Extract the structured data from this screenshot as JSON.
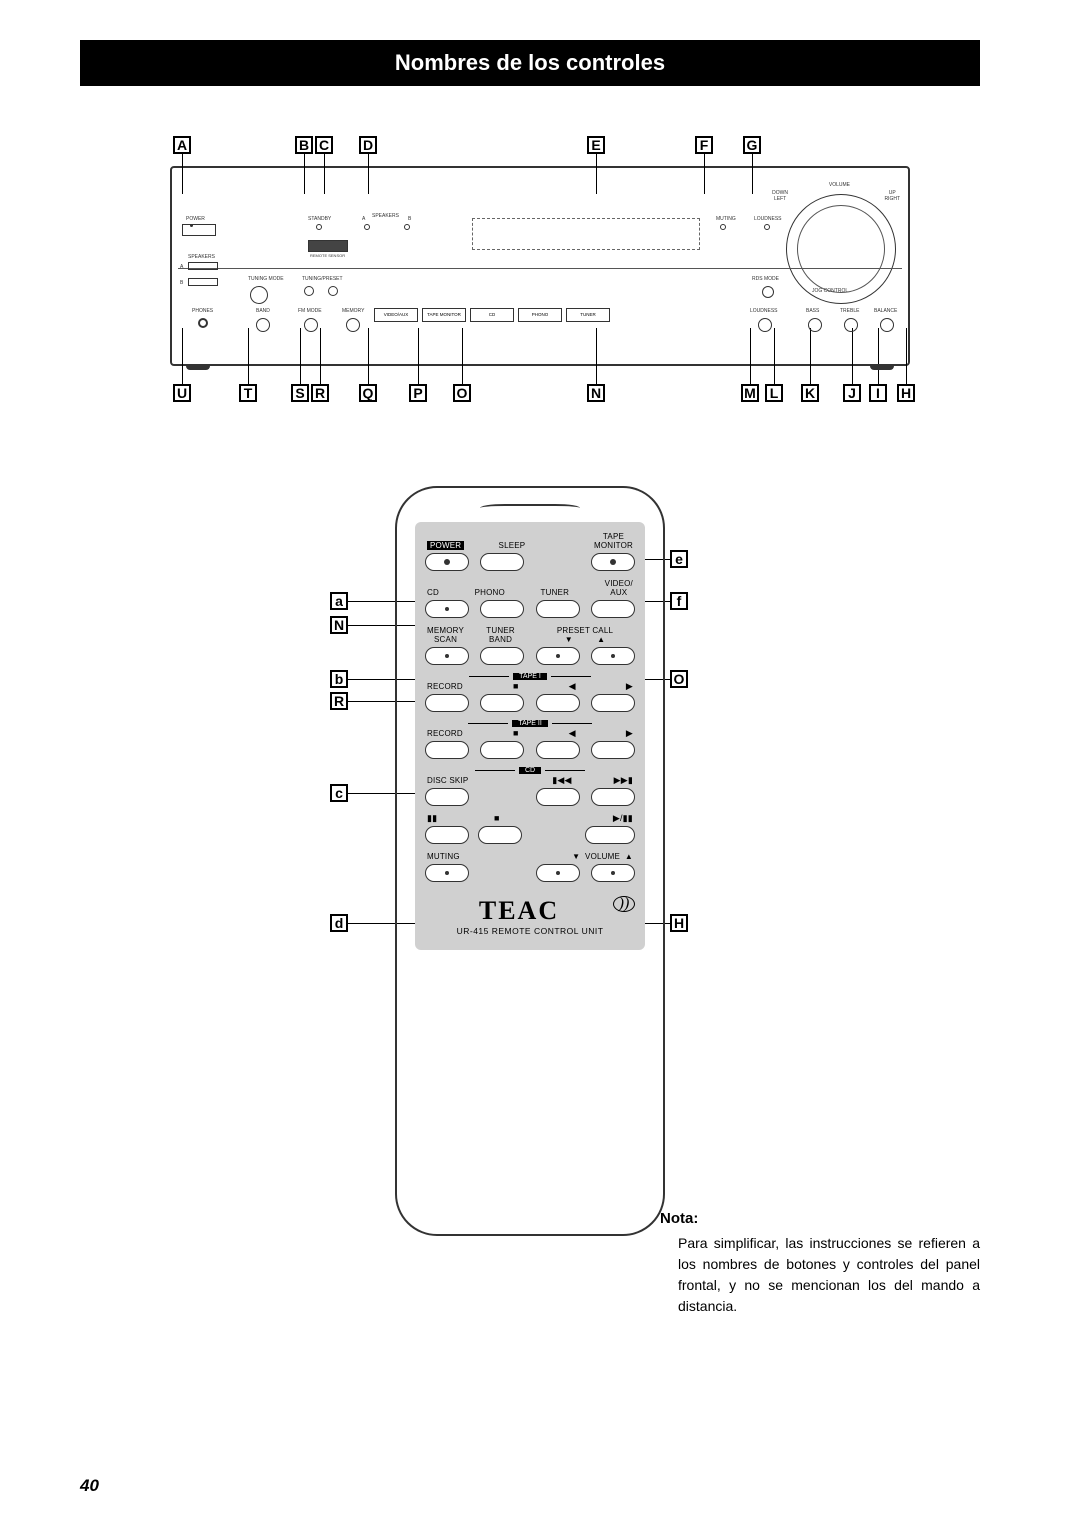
{
  "title_bar": "Nombres de los controles",
  "page_number": "40",
  "panel": {
    "top_labels": [
      "A",
      "B",
      "C",
      "D",
      "E",
      "F",
      "G"
    ],
    "top_x": [
      10,
      132,
      152,
      196,
      424,
      532,
      580
    ],
    "bottom_labels": [
      "U",
      "T",
      "S",
      "R",
      "Q",
      "P",
      "O",
      "N",
      "M",
      "L",
      "K",
      "J",
      "I",
      "H"
    ],
    "bottom_x": [
      10,
      76,
      128,
      148,
      196,
      246,
      290,
      424,
      578,
      602,
      638,
      680,
      706,
      734
    ],
    "power_label": "POWER",
    "standby_label": "STANDBY",
    "speakers_a": "A",
    "speakers_b": "B",
    "speakers_word": "SPEAKERS",
    "remote_sensor": "REMOTE SENSOR",
    "speakers_side": "SPEAKERS",
    "tuning_mode": "TUNING MODE",
    "tuning_preset": "TUNING/PRESET",
    "phones": "PHONES",
    "band": "BAND",
    "fm_mode": "FM MODE",
    "memory": "MEMORY",
    "buttons": [
      "VIDEO/AUX",
      "TAPE MONITOR",
      "CD",
      "PHONO",
      "TUNER"
    ],
    "volume": "VOLUME",
    "down_left": "DOWN\nLEFT",
    "up_right": "UP\nRIGHT",
    "muting": "MUTING",
    "loudness": "LOUDNESS",
    "rds_mode": "RDS MODE",
    "jog_control": "JOG CONTROL",
    "bass": "BASS",
    "treble": "TREBLE",
    "balance": "BALANCE",
    "loudness2": "LOUDNESS"
  },
  "remote": {
    "left_labels": [
      "a",
      "N",
      "b",
      "R",
      "c",
      "d"
    ],
    "left_y": [
      72,
      96,
      150,
      172,
      264,
      394
    ],
    "right_labels": [
      "e",
      "f",
      "O",
      "H"
    ],
    "right_y": [
      30,
      72,
      150,
      394
    ],
    "row1": {
      "power": "POWER",
      "sleep": "SLEEP",
      "tape_monitor": "TAPE\nMONITOR"
    },
    "row2": {
      "cd": "CD",
      "phono": "PHONO",
      "tuner": "TUNER",
      "video_aux": "VIDEO/\nAUX"
    },
    "row3": {
      "memory_scan": "MEMORY\nSCAN",
      "tuner_band": "TUNER",
      "band": "BAND",
      "preset_call": "PRESET CALL"
    },
    "tape1": "TAPE I",
    "tape2": "TAPE II",
    "record": "RECORD",
    "cd_hdr": "CD",
    "disc_skip": "DISC SKIP",
    "muting": "MUTING",
    "volume": "VOLUME",
    "brand": "TEAC",
    "brand_sub": "UR-415 REMOTE CONTROL UNIT"
  },
  "note": {
    "title": "Nota:",
    "body": "Para simplificar, las instrucciones se refieren a los nombres de botones y controles del panel frontal, y no se mencionan los del mando a distancia."
  },
  "colors": {
    "bg": "#ffffff",
    "ink": "#000000",
    "panel_gray": "#d0d0d0"
  }
}
